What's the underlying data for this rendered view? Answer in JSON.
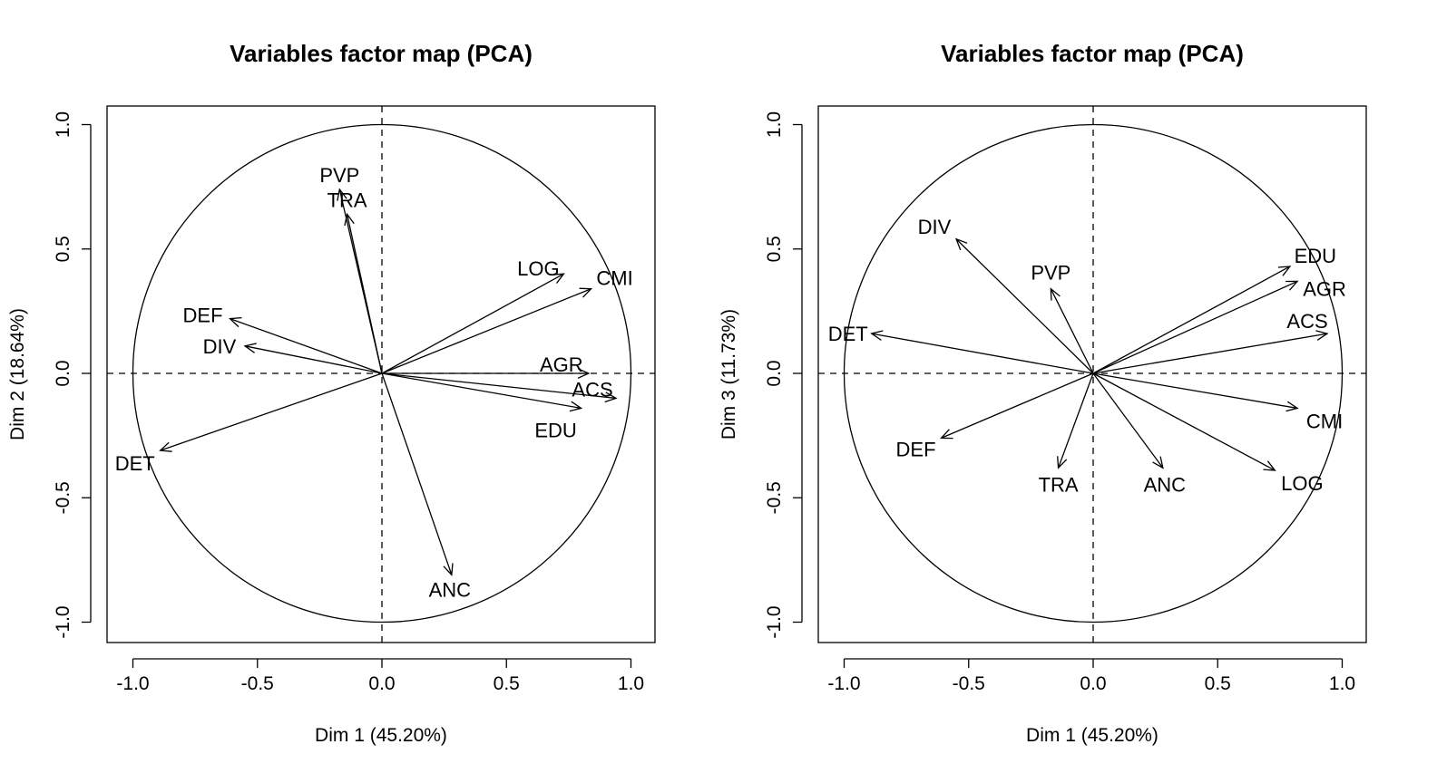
{
  "chart_data": [
    {
      "type": "scatter",
      "title": "Variables factor map (PCA)",
      "xlabel": "Dim 1 (45.20%)",
      "ylabel": "Dim 2 (18.64%)",
      "xlim": [
        -1.1,
        1.1
      ],
      "ylim": [
        -1.08,
        1.08
      ],
      "xticks": [
        -1.0,
        -0.5,
        0.0,
        0.5,
        1.0
      ],
      "yticks": [
        -1.0,
        -0.5,
        0.0,
        0.5,
        1.0
      ],
      "xtick_labels": [
        "-1.0",
        "-0.5",
        "0.0",
        "0.5",
        "1.0"
      ],
      "ytick_labels": [
        "-1.0",
        "-0.5",
        "0.0",
        "0.5",
        "1.0"
      ],
      "variables": [
        {
          "label": "PVP",
          "x": -0.17,
          "y": 0.74
        },
        {
          "label": "TRA",
          "x": -0.14,
          "y": 0.64
        },
        {
          "label": "LOG",
          "x": 0.73,
          "y": 0.4
        },
        {
          "label": "CMI",
          "x": 0.84,
          "y": 0.34
        },
        {
          "label": "DEF",
          "x": -0.61,
          "y": 0.22
        },
        {
          "label": "DIV",
          "x": -0.55,
          "y": 0.11
        },
        {
          "label": "AGR",
          "x": 0.83,
          "y": 0.0
        },
        {
          "label": "ACS",
          "x": 0.94,
          "y": -0.1
        },
        {
          "label": "EDU",
          "x": 0.8,
          "y": -0.14
        },
        {
          "label": "DET",
          "x": -0.89,
          "y": -0.31
        },
        {
          "label": "ANC",
          "x": 0.28,
          "y": -0.81
        }
      ]
    },
    {
      "type": "scatter",
      "title": "Variables factor map (PCA)",
      "xlabel": "Dim 1 (45.20%)",
      "ylabel": "Dim 3 (11.73%)",
      "xlim": [
        -1.1,
        1.1
      ],
      "ylim": [
        -1.08,
        1.08
      ],
      "xticks": [
        -1.0,
        -0.5,
        0.0,
        0.5,
        1.0
      ],
      "yticks": [
        -1.0,
        -0.5,
        0.0,
        0.5,
        1.0
      ],
      "xtick_labels": [
        "-1.0",
        "-0.5",
        "0.0",
        "0.5",
        "1.0"
      ],
      "ytick_labels": [
        "-1.0",
        "-0.5",
        "0.0",
        "0.5",
        "1.0"
      ],
      "variables": [
        {
          "label": "DIV",
          "x": -0.55,
          "y": 0.54
        },
        {
          "label": "PVP",
          "x": -0.17,
          "y": 0.34
        },
        {
          "label": "EDU",
          "x": 0.79,
          "y": 0.43
        },
        {
          "label": "AGR",
          "x": 0.82,
          "y": 0.37
        },
        {
          "label": "ACS",
          "x": 0.94,
          "y": 0.16
        },
        {
          "label": "DET",
          "x": -0.89,
          "y": 0.16
        },
        {
          "label": "CMI",
          "x": 0.82,
          "y": -0.14
        },
        {
          "label": "DEF",
          "x": -0.61,
          "y": -0.26
        },
        {
          "label": "TRA",
          "x": -0.14,
          "y": -0.38
        },
        {
          "label": "ANC",
          "x": 0.28,
          "y": -0.38
        },
        {
          "label": "LOG",
          "x": 0.73,
          "y": -0.39
        }
      ]
    }
  ]
}
